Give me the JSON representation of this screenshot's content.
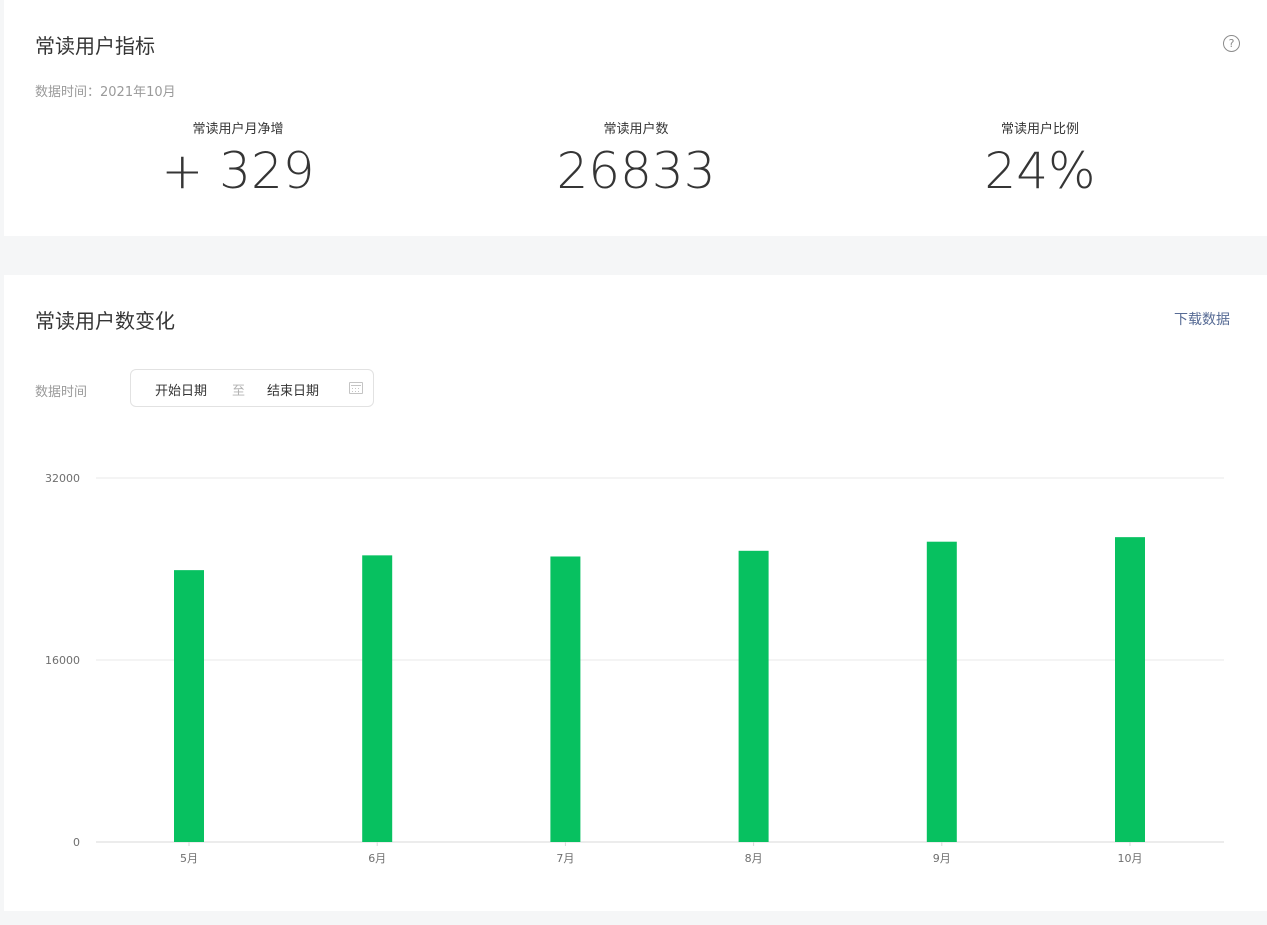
{
  "metrics_card": {
    "title": "常读用户指标",
    "help_icon": "?",
    "data_time": "数据时间：2021年10月",
    "metrics": [
      {
        "label": "常读用户月净增",
        "value": "+ 329"
      },
      {
        "label": "常读用户数",
        "value": "26833"
      },
      {
        "label": "常读用户比例",
        "value": "24%"
      }
    ]
  },
  "chart_card": {
    "title": "常读用户数变化",
    "download_label": "下载数据",
    "filter_label": "数据时间",
    "date_start": "开始日期",
    "date_sep": "至",
    "date_end": "结束日期"
  },
  "chart_data": {
    "type": "bar",
    "categories": [
      "5月",
      "6月",
      "7月",
      "8月",
      "9月",
      "10月"
    ],
    "values": [
      23900,
      25200,
      25100,
      25600,
      26400,
      26800
    ],
    "ylim": [
      0,
      32000
    ],
    "yticks": [
      0,
      16000,
      32000
    ],
    "bar_color": "#07c160",
    "grid": true,
    "legend": "none"
  },
  "colors": {
    "bar": "#07c160",
    "link": "#576b95",
    "grid": "#e8e8e8",
    "axis": "#d9d9d9"
  }
}
